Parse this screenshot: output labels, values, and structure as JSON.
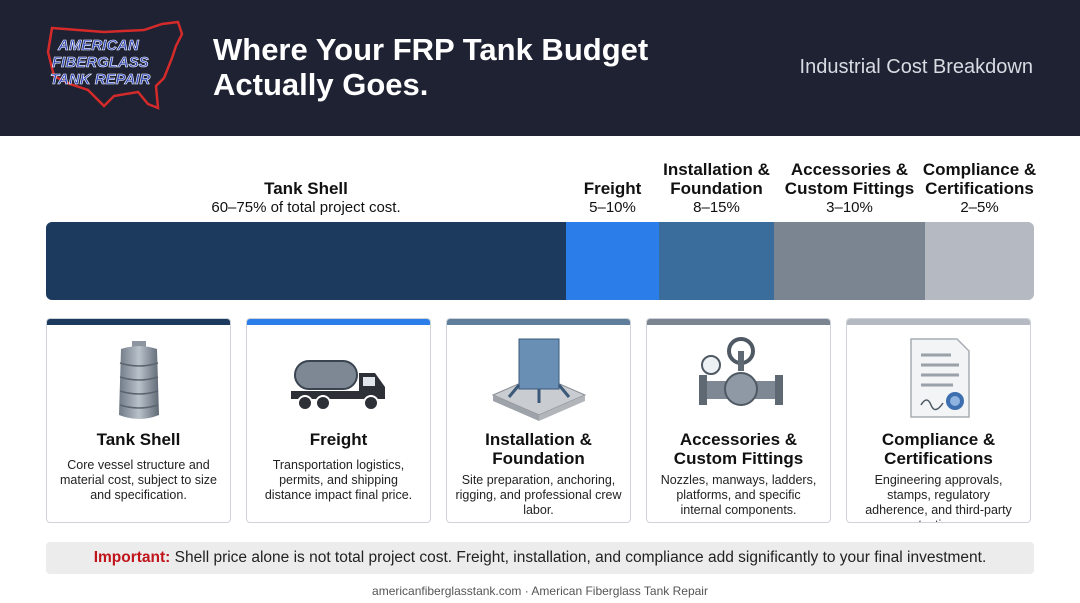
{
  "header": {
    "logo_lines": [
      "AMERICAN",
      "FIBERGLASS",
      "TANK REPAIR"
    ],
    "title_lines": [
      "Where Your FRP Tank Budget",
      "Actually Goes."
    ],
    "subtitle": "Industrial Cost Breakdown"
  },
  "segments": [
    {
      "label_lines": [
        "Tank Shell"
      ],
      "range": "60–75% of total project cost.",
      "color": "#1b3a5e"
    },
    {
      "label_lines": [
        "Freight"
      ],
      "range": "5–10%",
      "color": "#2b7de9"
    },
    {
      "label_lines": [
        "Installation &",
        "Foundation"
      ],
      "range": "8–15%",
      "color": "#3a6d9c"
    },
    {
      "label_lines": [
        "Accessories &",
        "Custom Fittings"
      ],
      "range": "3–10%",
      "color": "#7a8591"
    },
    {
      "label_lines": [
        "Compliance &",
        "Certifications"
      ],
      "range": "2–5%",
      "color": "#b5bac2"
    }
  ],
  "cards": [
    {
      "title": "Tank Shell",
      "description": "Core vessel structure and material cost, subject to size and specification."
    },
    {
      "title": "Freight",
      "description": "Transportation logistics, permits, and shipping distance impact final price."
    },
    {
      "title": "Installation & Foundation",
      "description": "Site preparation, anchoring, rigging, and professional crew labor."
    },
    {
      "title": "Accessories & Custom Fittings",
      "description": "Nozzles, manways, ladders, platforms, and specific internal components."
    },
    {
      "title": "Compliance & Certifications",
      "description": "Engineering approvals, stamps, regulatory adherence, and third-party testing."
    }
  ],
  "note": {
    "emphasis": "Important:",
    "text": "Shell price alone is not total project cost. Freight, installation, and compliance add significantly to your final investment."
  },
  "footer": "americanfiberglasstank.com · American Fiberglass Tank Repair"
}
